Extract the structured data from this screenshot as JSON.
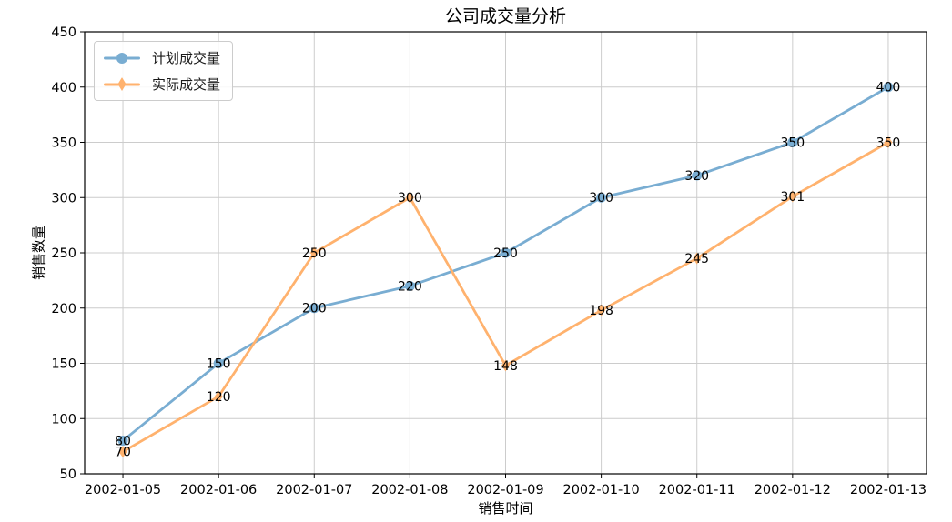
{
  "chart_data": {
    "type": "line",
    "title": "公司成交量分析",
    "xlabel": "销售时间",
    "ylabel": "销售数量",
    "categories": [
      "2002-01-05",
      "2002-01-06",
      "2002-01-07",
      "2002-01-08",
      "2002-01-09",
      "2002-01-10",
      "2002-01-11",
      "2002-01-12",
      "2002-01-13"
    ],
    "series": [
      {
        "name": "计划成交量",
        "marker": "circle",
        "color": "#79add2",
        "values": [
          80,
          150,
          200,
          220,
          250,
          300,
          320,
          350,
          400
        ]
      },
      {
        "name": "实际成交量",
        "marker": "diamond",
        "color": "#ffb26e",
        "values": [
          70,
          120,
          250,
          300,
          148,
          198,
          245,
          301,
          350
        ]
      }
    ],
    "ylim": [
      50,
      450
    ],
    "yticks": [
      50,
      100,
      150,
      200,
      250,
      300,
      350,
      400,
      450
    ],
    "grid": true,
    "grid_color": "#cccccc",
    "spine_color": "#000000",
    "text_color": "#000000",
    "data_labels": true,
    "legend_position": "upper left"
  }
}
